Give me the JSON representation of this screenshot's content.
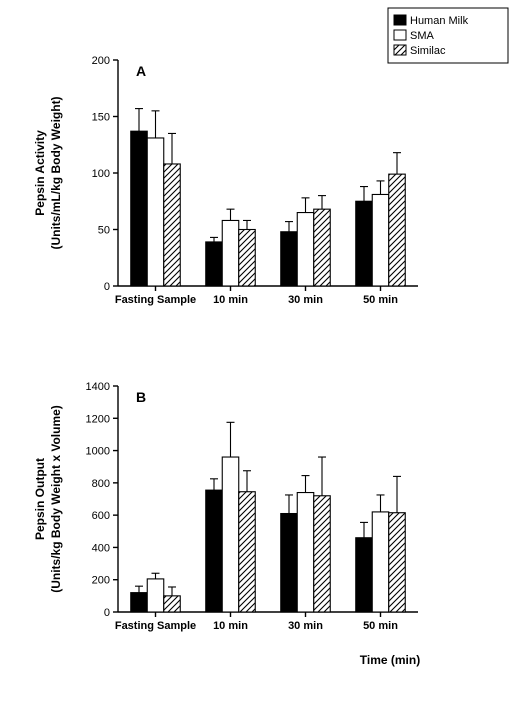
{
  "legend": {
    "items": [
      {
        "label": "Human Milk",
        "fill": "#000000",
        "stroke": "#000000",
        "pattern": "solid"
      },
      {
        "label": "SMA",
        "fill": "#ffffff",
        "stroke": "#000000",
        "pattern": "open"
      },
      {
        "label": "Similac",
        "fill": "#ffffff",
        "stroke": "#000000",
        "pattern": "hatch"
      }
    ],
    "box_stroke": "#000000",
    "fontsize": 11
  },
  "axis_label": {
    "text": "Time (min)",
    "fontsize": 12,
    "weight": "bold"
  },
  "panels": [
    {
      "id": "A",
      "ylabel_line1": "Pepsin Activity",
      "ylabel_line2": "(Units/mL/kg Body Weight)",
      "ylim": [
        0,
        200
      ],
      "ytick_step": 50,
      "categories": [
        "Fasting Sample",
        "10 min",
        "30 min",
        "50 min"
      ],
      "series": [
        {
          "key": "human_milk",
          "values": [
            137,
            39,
            48,
            75
          ],
          "err": [
            20,
            4,
            9,
            13
          ]
        },
        {
          "key": "sma",
          "values": [
            131,
            58,
            65,
            81
          ],
          "err": [
            24,
            10,
            13,
            12
          ]
        },
        {
          "key": "similac",
          "values": [
            108,
            50,
            68,
            99
          ],
          "err": [
            27,
            8,
            12,
            19
          ]
        }
      ]
    },
    {
      "id": "B",
      "ylabel_line1": "Pepsin Output",
      "ylabel_line2": "(Units/kg Body Weight x Volume)",
      "ylim": [
        0,
        1400
      ],
      "ytick_step": 200,
      "categories": [
        "Fasting Sample",
        "10 min",
        "30 min",
        "50 min"
      ],
      "series": [
        {
          "key": "human_milk",
          "values": [
            120,
            755,
            610,
            460
          ],
          "err": [
            40,
            70,
            115,
            95
          ]
        },
        {
          "key": "sma",
          "values": [
            205,
            960,
            740,
            620
          ],
          "err": [
            35,
            215,
            105,
            105
          ]
        },
        {
          "key": "similac",
          "values": [
            100,
            745,
            720,
            615
          ],
          "err": [
            55,
            130,
            240,
            225
          ]
        }
      ]
    }
  ],
  "style": {
    "background": "#ffffff",
    "axis_color": "#000000",
    "tick_fontsize": 11,
    "cat_fontsize": 11,
    "label_fontsize": 12,
    "panel_fontsize": 14,
    "bar_group_width": 0.66,
    "bar_gap": 0,
    "error_cap": 4,
    "line_width": 1.4
  }
}
